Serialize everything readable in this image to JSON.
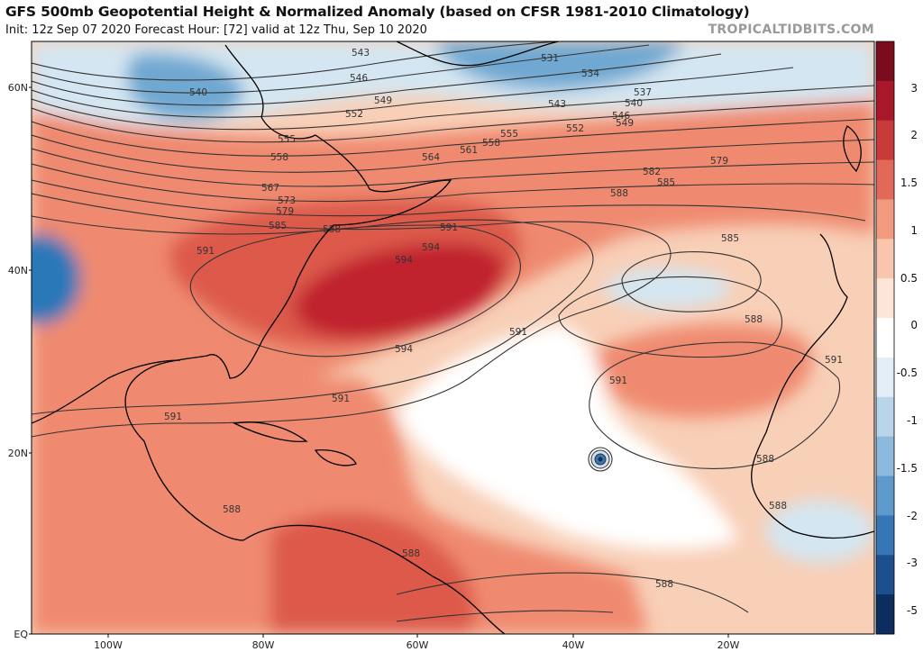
{
  "header": {
    "title": "GFS 500mb Geopotential Height & Normalized Anomaly (based on CFSR 1981-2010 Climatology)",
    "subtitle": "Init: 12z Sep 07 2020   Forecast Hour: [72]   valid at 12z Thu, Sep 10 2020",
    "brand": "TROPICALTIDBITS.COM"
  },
  "map": {
    "lat_labels": [
      "60N",
      "40N",
      "20N",
      "EQ"
    ],
    "lon_labels": [
      "100W",
      "80W",
      "60W",
      "40W",
      "20W"
    ],
    "colors": {
      "strong_pos": "#c0202e",
      "pos": "#ef8a6f",
      "weak_pos": "#f8cfb7",
      "neutral": "#ffffff",
      "weak_neg": "#d4e6f1",
      "neg": "#6fa8d2",
      "strong_neg": "#2a78b8",
      "contour": "#333333",
      "coast": "#000000"
    },
    "contour_labels": [
      {
        "text": "543"
      },
      {
        "text": "546"
      },
      {
        "text": "549"
      },
      {
        "text": "552"
      },
      {
        "text": "555"
      },
      {
        "text": "558"
      },
      {
        "text": "564"
      },
      {
        "text": "567"
      },
      {
        "text": "573"
      },
      {
        "text": "579"
      },
      {
        "text": "585"
      },
      {
        "text": "588"
      },
      {
        "text": "591"
      },
      {
        "text": "594"
      },
      {
        "text": "540"
      },
      {
        "text": "531"
      },
      {
        "text": "534"
      },
      {
        "text": "537"
      },
      {
        "text": "540"
      },
      {
        "text": "543"
      },
      {
        "text": "546"
      },
      {
        "text": "549"
      },
      {
        "text": "552"
      },
      {
        "text": "555"
      },
      {
        "text": "558"
      },
      {
        "text": "561"
      },
      {
        "text": "582"
      },
      {
        "text": "579"
      },
      {
        "text": "585"
      },
      {
        "text": "588"
      },
      {
        "text": "591"
      },
      {
        "text": "594"
      },
      {
        "text": "585"
      },
      {
        "text": "588"
      },
      {
        "text": "591"
      },
      {
        "text": "591"
      },
      {
        "text": "591"
      },
      {
        "text": "591"
      },
      {
        "text": "591"
      },
      {
        "text": "588"
      },
      {
        "text": "588"
      },
      {
        "text": "588"
      },
      {
        "text": "588"
      },
      {
        "text": "588"
      },
      {
        "text": "594"
      }
    ]
  },
  "colorbar": {
    "labels": [
      "3",
      "2",
      "1.5",
      "1",
      "0.5",
      "0",
      "-0.5",
      "-1",
      "-1.5",
      "-2",
      "-3",
      "-5"
    ],
    "colors": [
      "#7a0c1e",
      "#a8182a",
      "#c93a3a",
      "#e2685a",
      "#f19a7f",
      "#f9c6ad",
      "#fde6d8",
      "#ffffff",
      "#e3eef7",
      "#b9d5ea",
      "#8dbadc",
      "#5d99cb",
      "#3676b4",
      "#1d4f8e",
      "#0c2d5e"
    ]
  }
}
